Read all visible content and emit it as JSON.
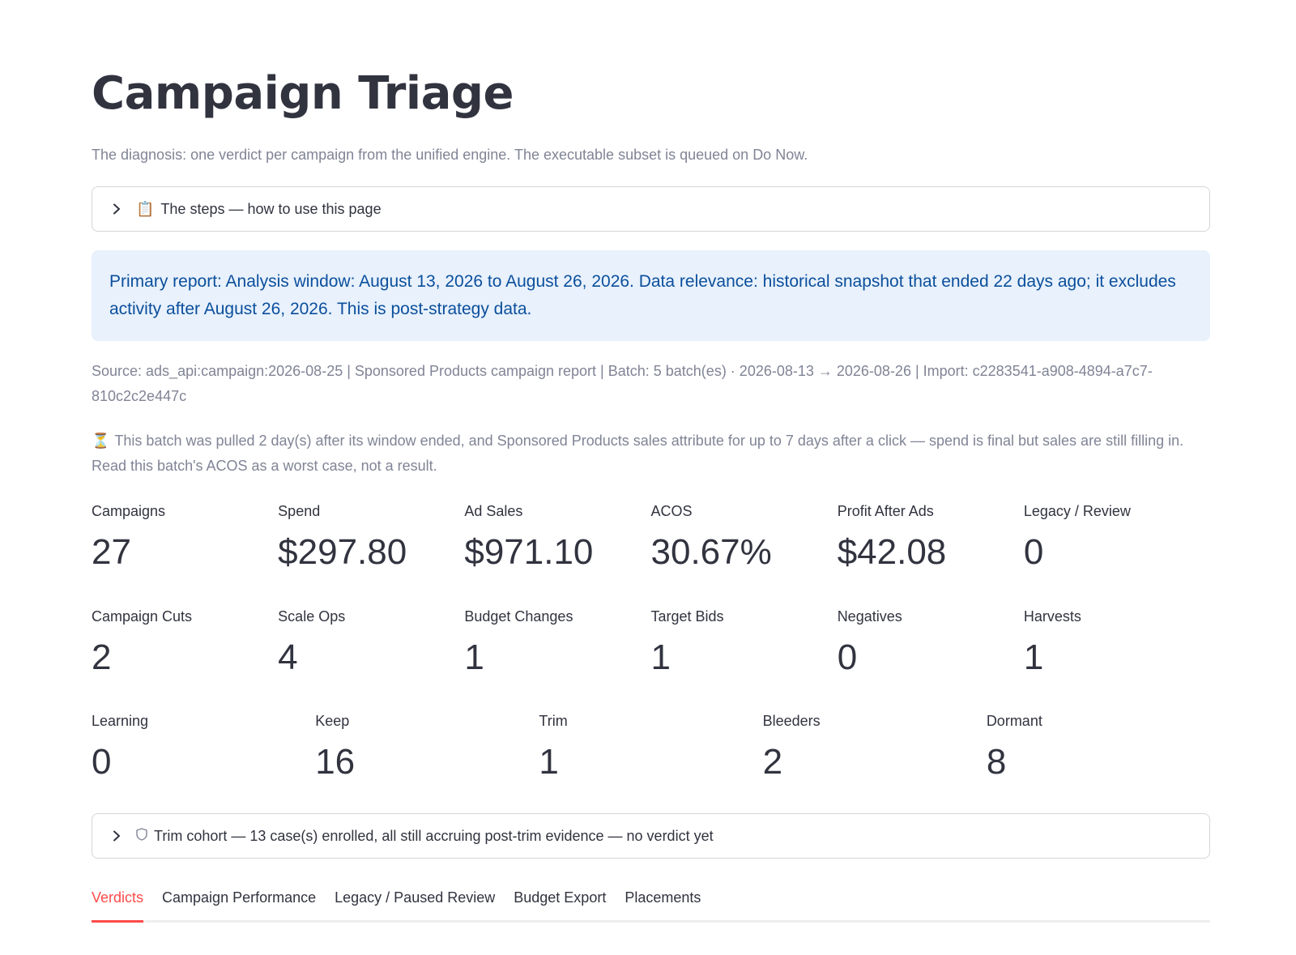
{
  "page": {
    "title": "Campaign Triage",
    "subtitle": "The diagnosis: one verdict per campaign from the unified engine. The executable subset is queued on Do Now."
  },
  "steps_expander": {
    "icon": "clipboard-icon",
    "emoji": "📋",
    "label": "The steps — how to use this page"
  },
  "info_box": {
    "text": "Primary report: Analysis window: August 13, 2026 to August 26, 2026. Data relevance: historical snapshot that ended 22 days ago; it excludes activity after August 26, 2026. This is post-strategy data."
  },
  "source_caption": "Source: ads_api:campaign:2026-08-25 | Sponsored Products campaign report | Batch: 5 batch(es) · 2026-08-13 → 2026-08-26 | Import: c2283541-a908-4894-a7c7-810c2c2e447c",
  "batch_caption": {
    "icon": "hourglass-icon",
    "emoji": "⏳",
    "text": "This batch was pulled 2 day(s) after its window ended, and Sponsored Products sales attribute for up to 7 days after a click — spend is final but sales are still filling in. Read this batch's ACOS as a worst case, not a result."
  },
  "metrics_row1": [
    {
      "label": "Campaigns",
      "value": "27"
    },
    {
      "label": "Spend",
      "value": "$297.80"
    },
    {
      "label": "Ad Sales",
      "value": "$971.10"
    },
    {
      "label": "ACOS",
      "value": "30.67%"
    },
    {
      "label": "Profit After Ads",
      "value": "$42.08"
    },
    {
      "label": "Legacy / Review",
      "value": "0"
    }
  ],
  "metrics_row2": [
    {
      "label": "Campaign Cuts",
      "value": "2"
    },
    {
      "label": "Scale Ops",
      "value": "4"
    },
    {
      "label": "Budget Changes",
      "value": "1"
    },
    {
      "label": "Target Bids",
      "value": "1"
    },
    {
      "label": "Negatives",
      "value": "0"
    },
    {
      "label": "Harvests",
      "value": "1"
    }
  ],
  "metrics_row3": [
    {
      "label": "Learning",
      "value": "0"
    },
    {
      "label": "Keep",
      "value": "16"
    },
    {
      "label": "Trim",
      "value": "1"
    },
    {
      "label": "Bleeders",
      "value": "2"
    },
    {
      "label": "Dormant",
      "value": "8"
    }
  ],
  "trim_expander": {
    "icon": "shield-icon",
    "label": "Trim cohort — 13 case(s) enrolled, all still accruing post-trim evidence — no verdict yet"
  },
  "tabs": [
    {
      "label": "Verdicts",
      "active": true
    },
    {
      "label": "Campaign Performance",
      "active": false
    },
    {
      "label": "Legacy / Paused Review",
      "active": false
    },
    {
      "label": "Budget Export",
      "active": false
    },
    {
      "label": "Placements",
      "active": false
    }
  ],
  "colors": {
    "text": "#31333f",
    "muted": "#808495",
    "info_bg": "#e8f1fc",
    "info_text": "#0b4f9c",
    "accent": "#ff4b4b"
  }
}
